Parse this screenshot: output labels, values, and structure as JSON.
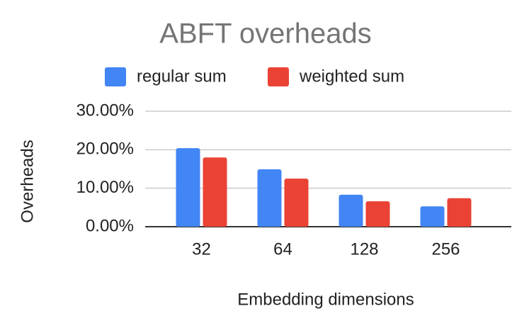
{
  "chart_data": {
    "type": "bar",
    "title": "ABFT overheads",
    "x_label": "Embedding dimensions",
    "y_label": "Overheads",
    "categories": [
      "32",
      "64",
      "128",
      "256"
    ],
    "series": [
      {
        "name": "regular sum",
        "color": "#4285f4",
        "values": [
          20.4,
          14.9,
          8.3,
          5.3
        ]
      },
      {
        "name": "weighted sum",
        "color": "#ea4335",
        "values": [
          18.0,
          12.5,
          6.6,
          7.4
        ]
      }
    ],
    "ylim": [
      0,
      30
    ],
    "yticks": [
      {
        "value": 0,
        "label": "0.00%"
      },
      {
        "value": 10,
        "label": "10.00%"
      },
      {
        "value": 20,
        "label": "20.00%"
      },
      {
        "value": 30,
        "label": "30.00%"
      }
    ],
    "grid": true,
    "legend": "top"
  }
}
